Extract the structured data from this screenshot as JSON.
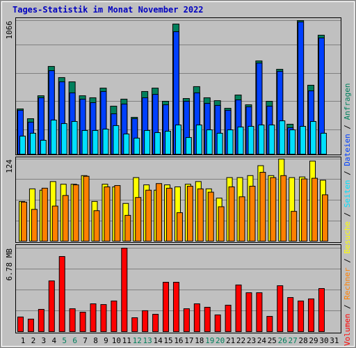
{
  "chart_data": [
    {
      "type": "bar",
      "title": "Tages-Statistik im Monat November 2022",
      "legend_separator": " / ",
      "ylim": [
        0,
        1066
      ],
      "yticks": [
        1066
      ],
      "series": [
        {
          "name": "Anfragen",
          "color": "#00805c",
          "values": [
            361,
            283,
            466,
            700,
            611,
            577,
            466,
            450,
            527,
            383,
            439,
            294,
            500,
            527,
            422,
            1038,
            444,
            539,
            450,
            427,
            366,
            472,
            394,
            744,
            422,
            677,
            239,
            1066,
            550,
            949,
            0
          ]
        },
        {
          "name": "Dateien",
          "color": "#0040ff",
          "values": [
            350,
            255,
            450,
            666,
            577,
            489,
            439,
            411,
            500,
            322,
            400,
            283,
            450,
            477,
            394,
            977,
            422,
            489,
            405,
            389,
            350,
            433,
            378,
            727,
            383,
            661,
            211,
            1055,
            505,
            927,
            0
          ]
        },
        {
          "name": "Seiten",
          "color": "#00e0ff",
          "values": [
            144,
            167,
            111,
            272,
            244,
            261,
            189,
            189,
            200,
            228,
            161,
            128,
            189,
            172,
            183,
            233,
            133,
            233,
            194,
            167,
            194,
            217,
            222,
            233,
            233,
            266,
            194,
            222,
            261,
            167,
            0
          ]
        }
      ]
    },
    {
      "type": "bar",
      "ylim": [
        0,
        124
      ],
      "yticks": [
        124
      ],
      "series": [
        {
          "name": "Besuche",
          "color": "#ffff00",
          "values": [
            60,
            79,
            77,
            90,
            86,
            86,
            99,
            60,
            86,
            82,
            57,
            96,
            85,
            77,
            85,
            82,
            86,
            90,
            79,
            65,
            96,
            96,
            99,
            114,
            99,
            124,
            96,
            97,
            121,
            92,
            0
          ]
        },
        {
          "name": "Rechner",
          "color": "#ff8000",
          "values": [
            59,
            48,
            80,
            53,
            69,
            85,
            98,
            46,
            82,
            84,
            39,
            66,
            77,
            87,
            80,
            43,
            83,
            79,
            74,
            52,
            82,
            67,
            83,
            104,
            96,
            99,
            45,
            94,
            95,
            70,
            0
          ]
        }
      ]
    },
    {
      "type": "bar",
      "ylim": [
        0,
        6.78
      ],
      "yticks": [
        {
          "value": 6.78,
          "label": "6.78 MB"
        }
      ],
      "categories": [
        "1",
        "2",
        "3",
        "4",
        "5",
        "6",
        "7",
        "8",
        "9",
        "10",
        "11",
        "12",
        "13",
        "14",
        "15",
        "16",
        "17",
        "18",
        "19",
        "20",
        "21",
        "22",
        "23",
        "24",
        "25",
        "26",
        "27",
        "28",
        "29",
        "30",
        "31"
      ],
      "tick_label_colors": [
        "#000000",
        "#000000",
        "#000000",
        "#000000",
        "#00805c",
        "#00805c",
        "#000000",
        "#000000",
        "#000000",
        "#000000",
        "#000000",
        "#00805c",
        "#00805c",
        "#000000",
        "#000000",
        "#000000",
        "#000000",
        "#000000",
        "#00805c",
        "#00805c",
        "#000000",
        "#000000",
        "#000000",
        "#000000",
        "#000000",
        "#00805c",
        "#00805c",
        "#000000",
        "#000000",
        "#000000",
        "#000000"
      ],
      "series": [
        {
          "name": "Volumen",
          "color": "#ff0000",
          "values": [
            1.19,
            1.02,
            1.81,
            4.12,
            6.1,
            1.86,
            1.58,
            2.26,
            2.2,
            2.49,
            6.78,
            1.13,
            1.7,
            1.41,
            4.01,
            4.01,
            1.86,
            2.26,
            1.98,
            1.36,
            2.15,
            3.79,
            3.16,
            3.16,
            1.24,
            3.73,
            2.77,
            2.49,
            2.66,
            3.5,
            0
          ]
        }
      ]
    }
  ]
}
